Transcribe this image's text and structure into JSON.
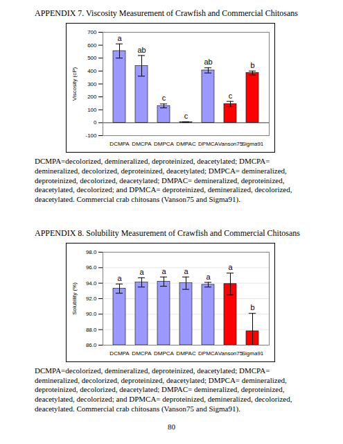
{
  "chart_data": [
    {
      "type": "bar",
      "title": "APPENDIX 7. Viscosity Measurement of Crawfish and Commercial Chitosans",
      "y_label": "Viscosity (cP)",
      "categories": [
        "DCMPA",
        "DMCPA",
        "DMPCA",
        "DMPAC",
        "DPMCA",
        "Vanson75",
        "Sigma91"
      ],
      "values": [
        555,
        440,
        130,
        5,
        405,
        145,
        385
      ],
      "errors": [
        55,
        80,
        15,
        0,
        20,
        20,
        15
      ],
      "annotations": [
        "a",
        "ab",
        "c",
        "c",
        "ab",
        "c",
        "b"
      ],
      "colors": [
        "#9999ff",
        "#9999ff",
        "#9999ff",
        "#9999ff",
        "#9999ff",
        "#ff0000",
        "#ff0000"
      ],
      "ylim": [
        -100,
        700
      ],
      "yticks": [
        -100,
        0,
        100,
        200,
        300,
        400,
        500,
        600,
        700
      ],
      "grid": false,
      "caption": "DCMPA=decolorized, demineralized, deproteinized, deacetylated; DMCPA= demineralized, decolorized, deproteinized, deacetylated; DMPCA= demineralized, deproteinized, decolorized, deacetylated; DMPAC= demineralized, deproteinized, deacetylated, decolorized; and DPMCA= deproteinized, demineralized, decolorized, deacetylated. Commercial crab chitosans (Vanson75 and Sigma91)."
    },
    {
      "type": "bar",
      "title": "APPENDIX 8. Solubility Measurement of Crawfish and Commercial Chitosans",
      "y_label": "Solubility (%)",
      "categories": [
        "DCMPA",
        "DMCPA",
        "DMPCA",
        "DMPAC",
        "DPMCA",
        "Vanson75",
        "Sigma91"
      ],
      "values": [
        93.3,
        94.1,
        94.2,
        94.0,
        93.8,
        93.9,
        87.8
      ],
      "errors": [
        0.6,
        0.6,
        0.6,
        0.8,
        0.3,
        1.4,
        2.3
      ],
      "annotations": [
        "a",
        "a",
        "a",
        "a",
        "a",
        "a",
        "b"
      ],
      "colors": [
        "#9999ff",
        "#9999ff",
        "#9999ff",
        "#9999ff",
        "#9999ff",
        "#ff0000",
        "#ff0000"
      ],
      "ylim": [
        86,
        98
      ],
      "yticks": [
        {
          "value": 86,
          "label": "86.0"
        },
        {
          "value": 88,
          "label": "88.0"
        },
        {
          "value": 90,
          "label": "90.0"
        },
        {
          "value": 92,
          "label": "92.0"
        },
        {
          "value": 94,
          "label": "94.0"
        },
        {
          "value": 96,
          "label": "96.0"
        },
        {
          "value": 98,
          "label": "98.0"
        }
      ],
      "grid": true,
      "caption": "DCMPA=decolorized, demineralized, deproteinized, deacetylated; DMCPA= demineralized, decolorized, deproteinized, deacetylated; DMPCA= demineralized, deproteinized, decolorized, deacetylated; DMPAC= demineralized, deproteinized, deacetylated, decolorized; and DPMCA= deproteinized, demineralized, decolorized, deacetylated. Commercial crab chitosans (Vanson75 and Sigma91)."
    }
  ],
  "footer": {
    "page_number": "80"
  }
}
